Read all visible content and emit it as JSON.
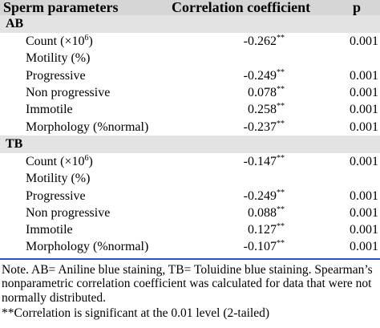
{
  "header": {
    "col1": "Sperm parameters",
    "col2": "Correlation coefficient",
    "col3": "p"
  },
  "groups": [
    {
      "label": "AB",
      "rows": [
        {
          "name_html": "Count (×10<sup>6</sup>)",
          "coef": "-0.262",
          "sig": "**",
          "p": "0.001"
        },
        {
          "name_html": "Motility (%)",
          "coef": "",
          "sig": "",
          "p": ""
        },
        {
          "name_html": "Progressive",
          "coef": "-0.249",
          "sig": "**",
          "p": "0.001"
        },
        {
          "name_html": "Non progressive",
          "coef": "0.078",
          "sig": "**",
          "p": "0.001"
        },
        {
          "name_html": "Immotile",
          "coef": "0.258",
          "sig": "**",
          "p": "0.001"
        },
        {
          "name_html": "Morphology (%normal)",
          "coef": "-0.237",
          "sig": "**",
          "p": "0.001"
        }
      ]
    },
    {
      "label": "TB",
      "rows": [
        {
          "name_html": "Count (×10<sup>6</sup>)",
          "coef": "-0.147",
          "sig": "**",
          "p": "0.001"
        },
        {
          "name_html": "Motility (%)",
          "coef": "",
          "sig": "",
          "p": ""
        },
        {
          "name_html": "Progressive",
          "coef": "-0.249",
          "sig": "**",
          "p": "0.001"
        },
        {
          "name_html": "Non progressive",
          "coef": "0.088",
          "sig": "**",
          "p": "0.001"
        },
        {
          "name_html": "Immotile",
          "coef": "0.127",
          "sig": "**",
          "p": "0.001"
        },
        {
          "name_html": "Morphology (%normal)",
          "coef": "-0.107",
          "sig": "**",
          "p": "0.001"
        }
      ]
    }
  ],
  "notes": {
    "note": "Note. AB= Aniline blue staining, TB= Toluidine blue staining. Spearman’s nonparametric correlation coefficient was calculated for data that were not normally distributed.",
    "significance": " **Correlation is significant at the 0.01 level (2-tailed)"
  },
  "colors": {
    "header_bg": "#d6d6d6",
    "group_bg": "#e3e3e3",
    "rule": "#2b53c7"
  }
}
